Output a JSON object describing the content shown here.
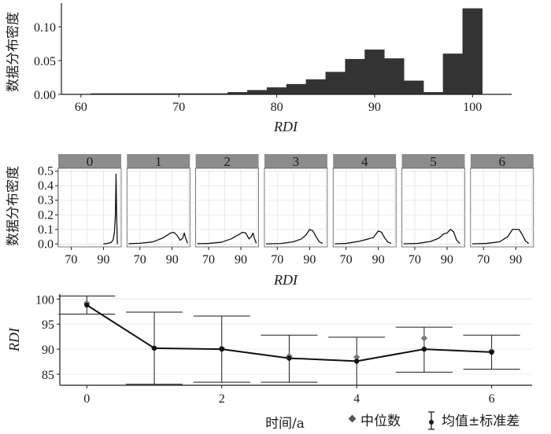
{
  "colors": {
    "bar": "#333333",
    "panel_strip": "#8c8c8c",
    "grid": "#e3e3e3",
    "axis": "#1a1a1a",
    "line": "#111111",
    "median": "#7a7a7a"
  },
  "chart_data": [
    {
      "type": "histogram",
      "id": "top",
      "ylabel": "数据分布密度",
      "xlabel": "RDI",
      "xlim": [
        58,
        104
      ],
      "ylim": [
        0,
        0.135
      ],
      "xticks": [
        60,
        70,
        80,
        90,
        100
      ],
      "yticks": [
        0.0,
        0.05,
        0.1
      ],
      "ytick_labels": [
        "0.00",
        "0.05",
        "0.10"
      ],
      "bin_width": 2,
      "bins": [
        {
          "x": 62,
          "y": 0.001
        },
        {
          "x": 64,
          "y": 0.001
        },
        {
          "x": 66,
          "y": 0.001
        },
        {
          "x": 68,
          "y": 0.001
        },
        {
          "x": 70,
          "y": 0.001
        },
        {
          "x": 72,
          "y": 0.001
        },
        {
          "x": 74,
          "y": 0.001
        },
        {
          "x": 76,
          "y": 0.003
        },
        {
          "x": 78,
          "y": 0.006
        },
        {
          "x": 80,
          "y": 0.01
        },
        {
          "x": 82,
          "y": 0.015
        },
        {
          "x": 84,
          "y": 0.022
        },
        {
          "x": 86,
          "y": 0.033
        },
        {
          "x": 88,
          "y": 0.052
        },
        {
          "x": 90,
          "y": 0.066
        },
        {
          "x": 92,
          "y": 0.053
        },
        {
          "x": 94,
          "y": 0.02
        },
        {
          "x": 96,
          "y": 0.003
        },
        {
          "x": 98,
          "y": 0.06
        },
        {
          "x": 100,
          "y": 0.127
        }
      ]
    },
    {
      "type": "line",
      "id": "facets",
      "ylabel": "数据分布密度",
      "xlabel": "RDI",
      "xlim": [
        62,
        101
      ],
      "ylim": [
        -0.02,
        0.52
      ],
      "xticks": [
        70,
        90
      ],
      "yticks": [
        0.0,
        0.1,
        0.2,
        0.3,
        0.4,
        0.5
      ],
      "panels": [
        {
          "label": "0",
          "points": [
            [
              90,
              0.0
            ],
            [
              93,
              0.005
            ],
            [
              95,
              0.012
            ],
            [
              96,
              0.03
            ],
            [
              96.8,
              0.08
            ],
            [
              97.4,
              0.2
            ],
            [
              97.8,
              0.48
            ],
            [
              98.2,
              0.18
            ],
            [
              98.6,
              0.0
            ]
          ]
        },
        {
          "label": "1",
          "points": [
            [
              63,
              0.002
            ],
            [
              70,
              0.005
            ],
            [
              78,
              0.014
            ],
            [
              84,
              0.04
            ],
            [
              89,
              0.075
            ],
            [
              91,
              0.08
            ],
            [
              93,
              0.06
            ],
            [
              95,
              0.025
            ],
            [
              96.5,
              0.04
            ],
            [
              97.5,
              0.075
            ],
            [
              98.5,
              0.035
            ],
            [
              99.5,
              0.005
            ]
          ]
        },
        {
          "label": "2",
          "points": [
            [
              63,
              0.002
            ],
            [
              70,
              0.004
            ],
            [
              78,
              0.012
            ],
            [
              84,
              0.035
            ],
            [
              88,
              0.06
            ],
            [
              91,
              0.08
            ],
            [
              93,
              0.075
            ],
            [
              95,
              0.035
            ],
            [
              96.5,
              0.05
            ],
            [
              97.5,
              0.075
            ],
            [
              98.5,
              0.035
            ],
            [
              99.5,
              0.005
            ]
          ]
        },
        {
          "label": "3",
          "points": [
            [
              63,
              0.001
            ],
            [
              72,
              0.003
            ],
            [
              80,
              0.015
            ],
            [
              85,
              0.035
            ],
            [
              88,
              0.065
            ],
            [
              90,
              0.1
            ],
            [
              92,
              0.09
            ],
            [
              94,
              0.05
            ],
            [
              96,
              0.015
            ],
            [
              98,
              0.004
            ]
          ]
        },
        {
          "label": "4",
          "points": [
            [
              63,
              0.001
            ],
            [
              70,
              0.004
            ],
            [
              78,
              0.018
            ],
            [
              84,
              0.035
            ],
            [
              87,
              0.045
            ],
            [
              90,
              0.09
            ],
            [
              92,
              0.08
            ],
            [
              94,
              0.04
            ],
            [
              96,
              0.012
            ],
            [
              98,
              0.004
            ]
          ]
        },
        {
          "label": "5",
          "points": [
            [
              63,
              0.001
            ],
            [
              72,
              0.004
            ],
            [
              80,
              0.018
            ],
            [
              85,
              0.04
            ],
            [
              88,
              0.07
            ],
            [
              90,
              0.075
            ],
            [
              92,
              0.1
            ],
            [
              94,
              0.085
            ],
            [
              96,
              0.025
            ],
            [
              98,
              0.004
            ]
          ]
        },
        {
          "label": "6",
          "points": [
            [
              63,
              0.001
            ],
            [
              72,
              0.004
            ],
            [
              80,
              0.015
            ],
            [
              85,
              0.05
            ],
            [
              88,
              0.1
            ],
            [
              90,
              0.1
            ],
            [
              92,
              0.1
            ],
            [
              94,
              0.065
            ],
            [
              96,
              0.02
            ],
            [
              98,
              0.004
            ]
          ]
        }
      ]
    },
    {
      "type": "errorbar",
      "id": "bottom",
      "ylabel": "RDI",
      "xlabel": "时间/a",
      "xlim": [
        -0.4,
        6.6
      ],
      "ylim": [
        82.8,
        101
      ],
      "xticks": [
        0,
        2,
        4,
        6
      ],
      "yticks": [
        85,
        90,
        95,
        100
      ],
      "x": [
        0,
        1,
        2,
        3,
        4,
        5,
        6
      ],
      "mean": [
        98.8,
        90.2,
        90.0,
        88.2,
        87.6,
        90.0,
        89.4
      ],
      "sd_low": [
        97.0,
        83.0,
        83.4,
        83.4,
        82.8,
        85.4,
        86.0
      ],
      "sd_high": [
        100.6,
        97.4,
        96.6,
        92.8,
        92.4,
        94.4,
        92.8
      ],
      "median": [
        99.2,
        90.2,
        90.2,
        88.6,
        88.4,
        92.2,
        89.6
      ],
      "legend": {
        "median": "中位数",
        "mean_sd": "均值±标准差"
      }
    }
  ]
}
